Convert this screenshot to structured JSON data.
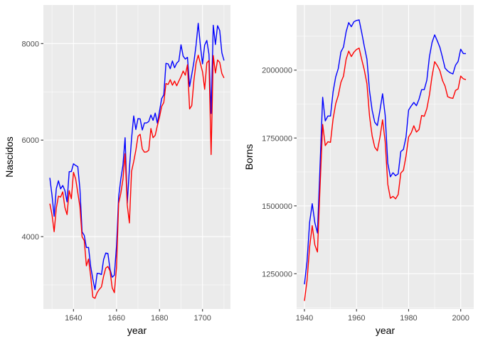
{
  "chart_data": [
    {
      "type": "line",
      "xlabel": "year",
      "ylabel": "Nascidos",
      "xlim": [
        1626,
        1713
      ],
      "ylim": [
        2500,
        8800
      ],
      "x_ticks": [
        1640,
        1660,
        1680,
        1700
      ],
      "y_ticks": [
        4000,
        6000,
        8000
      ],
      "grid": true,
      "x": [
        1629,
        1630,
        1631,
        1632,
        1633,
        1634,
        1635,
        1636,
        1637,
        1638,
        1639,
        1640,
        1641,
        1642,
        1643,
        1644,
        1645,
        1646,
        1647,
        1648,
        1649,
        1650,
        1651,
        1652,
        1653,
        1654,
        1655,
        1656,
        1657,
        1658,
        1659,
        1660,
        1661,
        1662,
        1663,
        1664,
        1665,
        1666,
        1667,
        1668,
        1669,
        1670,
        1671,
        1672,
        1673,
        1674,
        1675,
        1676,
        1677,
        1678,
        1679,
        1680,
        1681,
        1682,
        1683,
        1684,
        1685,
        1686,
        1687,
        1688,
        1689,
        1690,
        1691,
        1692,
        1693,
        1694,
        1695,
        1696,
        1697,
        1698,
        1699,
        1700,
        1701,
        1702,
        1703,
        1704,
        1705,
        1706,
        1707,
        1708,
        1709,
        1710
      ],
      "series": [
        {
          "color": "#0000ff",
          "values": [
            5218,
            4858,
            4422,
            4994,
            5158,
            4990,
            5060,
            4955,
            4720,
            5345,
            5350,
            5510,
            5475,
            5450,
            4980,
            4100,
            4025,
            3775,
            3775,
            3380,
            3120,
            2900,
            3240,
            3235,
            3215,
            3525,
            3660,
            3650,
            3320,
            3160,
            3200,
            3800,
            4825,
            5190,
            5480,
            6050,
            4690,
            5405,
            6030,
            6500,
            6220,
            6445,
            6440,
            6210,
            6355,
            6355,
            6385,
            6520,
            6410,
            6560,
            6350,
            6600,
            6860,
            6940,
            7590,
            7580,
            7480,
            7640,
            7500,
            7595,
            7640,
            7975,
            7740,
            7680,
            7715,
            7110,
            7360,
            7620,
            7965,
            8420,
            7960,
            7580,
            7970,
            8065,
            7780,
            6550,
            8380,
            7980,
            8370,
            8270,
            7810,
            7650
          ]
        },
        {
          "color": "#ff0000",
          "values": [
            4683,
            4457,
            4102,
            4590,
            4839,
            4820,
            4928,
            4605,
            4457,
            4952,
            4784,
            5332,
            5200,
            4910,
            4617,
            3997,
            3919,
            3395,
            3536,
            3181,
            2746,
            2722,
            2840,
            2908,
            2959,
            3179,
            3349,
            3382,
            3289,
            2939,
            2840,
            3355,
            4689,
            4896,
            5186,
            5719,
            4656,
            4284,
            5350,
            5556,
            5790,
            6080,
            6120,
            5815,
            5750,
            5756,
            5790,
            6240,
            6050,
            6100,
            6300,
            6476,
            6696,
            6781,
            7172,
            7153,
            7251,
            7138,
            7223,
            7127,
            7225,
            7318,
            7430,
            7345,
            7560,
            6646,
            6716,
            7238,
            7596,
            7760,
            7590,
            7418,
            7053,
            7600,
            7650,
            5700,
            7752,
            7390,
            7660,
            7610,
            7380,
            7288
          ]
        }
      ]
    },
    {
      "type": "line",
      "xlabel": "year",
      "ylabel": "Borns",
      "xlim": [
        1937,
        2005
      ],
      "ylim": [
        1120000,
        2240000
      ],
      "x_ticks": [
        1940,
        1960,
        1980,
        2000
      ],
      "y_ticks": [
        1250000,
        1500000,
        1750000,
        2000000
      ],
      "y_tick_labels": [
        "1250000",
        "1500000",
        "1750000",
        "2000000"
      ],
      "grid": true,
      "x": [
        1940,
        1941,
        1942,
        1943,
        1944,
        1945,
        1946,
        1947,
        1948,
        1949,
        1950,
        1951,
        1952,
        1953,
        1954,
        1955,
        1956,
        1957,
        1958,
        1959,
        1960,
        1961,
        1962,
        1963,
        1964,
        1965,
        1966,
        1967,
        1968,
        1969,
        1970,
        1971,
        1972,
        1973,
        1974,
        1975,
        1976,
        1977,
        1978,
        1979,
        1980,
        1981,
        1982,
        1983,
        1984,
        1985,
        1986,
        1987,
        1988,
        1989,
        1990,
        1991,
        1992,
        1993,
        1994,
        1995,
        1996,
        1997,
        1998,
        1999,
        2000,
        2001,
        2002
      ],
      "series": [
        {
          "color": "#0000ff",
          "values": [
            1211000,
            1295000,
            1440000,
            1508000,
            1438000,
            1400000,
            1649000,
            1900000,
            1813000,
            1831000,
            1831000,
            1920000,
            1975000,
            2006000,
            2067000,
            2085000,
            2141000,
            2175000,
            2160000,
            2178000,
            2183000,
            2185000,
            2138000,
            2087000,
            2040000,
            1923000,
            1852000,
            1808000,
            1796000,
            1852000,
            1913000,
            1834000,
            1657000,
            1607000,
            1622000,
            1611000,
            1618000,
            1700000,
            1708000,
            1753000,
            1853000,
            1868000,
            1881000,
            1869000,
            1893000,
            1928000,
            1928000,
            1963000,
            2050000,
            2102000,
            2130000,
            2108000,
            2084000,
            2047000,
            2007000,
            1997000,
            1990000,
            1986000,
            2018000,
            2032000,
            2077000,
            2061000,
            2061000
          ]
        },
        {
          "color": "#ff0000",
          "values": [
            1150000,
            1225000,
            1350000,
            1427000,
            1356000,
            1330000,
            1572000,
            1800000,
            1722000,
            1736000,
            1734000,
            1820000,
            1876000,
            1907000,
            1955000,
            1978000,
            2040000,
            2070000,
            2050000,
            2066000,
            2076000,
            2081000,
            2039000,
            2000000,
            1950000,
            1830000,
            1758000,
            1716000,
            1703000,
            1753000,
            1817000,
            1737000,
            1580000,
            1528000,
            1535000,
            1526000,
            1542000,
            1621000,
            1631000,
            1683000,
            1754000,
            1769000,
            1795000,
            1772000,
            1781000,
            1833000,
            1830000,
            1858000,
            1909000,
            1978000,
            2031000,
            2017000,
            1998000,
            1962000,
            1941000,
            1902000,
            1898000,
            1896000,
            1925000,
            1931000,
            1978000,
            1968000,
            1965000
          ]
        }
      ]
    }
  ]
}
